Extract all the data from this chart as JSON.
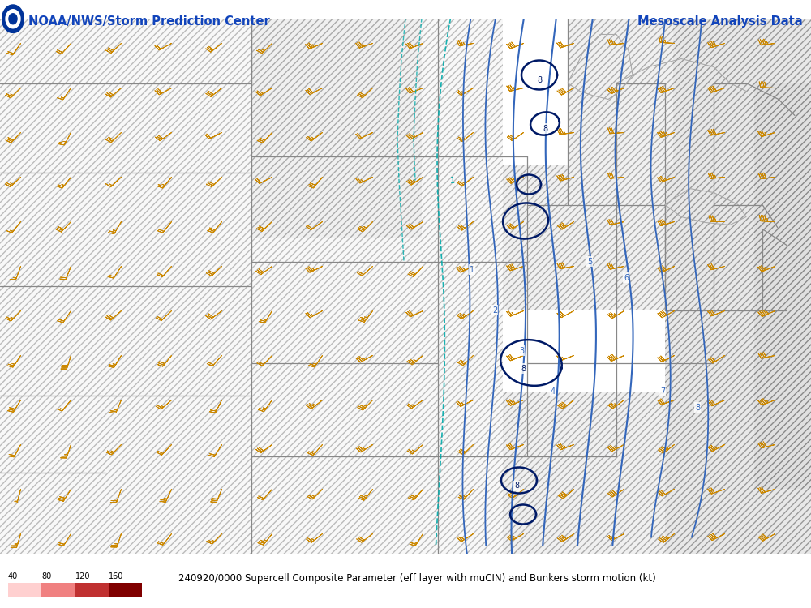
{
  "title_left": "NOAA/NWS/Storm Prediction Center",
  "title_right": "Mesoscale Analysis Data",
  "bottom_label": "240920/0000 Supercell Composite Parameter (eff layer with muCIN) and Bunkers storm motion (kt)",
  "colorbar_values": [
    "40",
    "80",
    "120",
    "160"
  ],
  "colorbar_colors": [
    "#ffd0d0",
    "#f08080",
    "#c03030",
    "#800000"
  ],
  "background_color": "#ffffff",
  "barb_color": "#cc8800",
  "contour_blue": "#3366bb",
  "contour_dark": "#001a66",
  "contour_cyan": "#00aaaa",
  "border_color": "#888888",
  "hatch_light": "#cccccc",
  "hatch_dark": "#999999",
  "figsize": [
    10.0,
    7.5
  ],
  "dpi": 100
}
